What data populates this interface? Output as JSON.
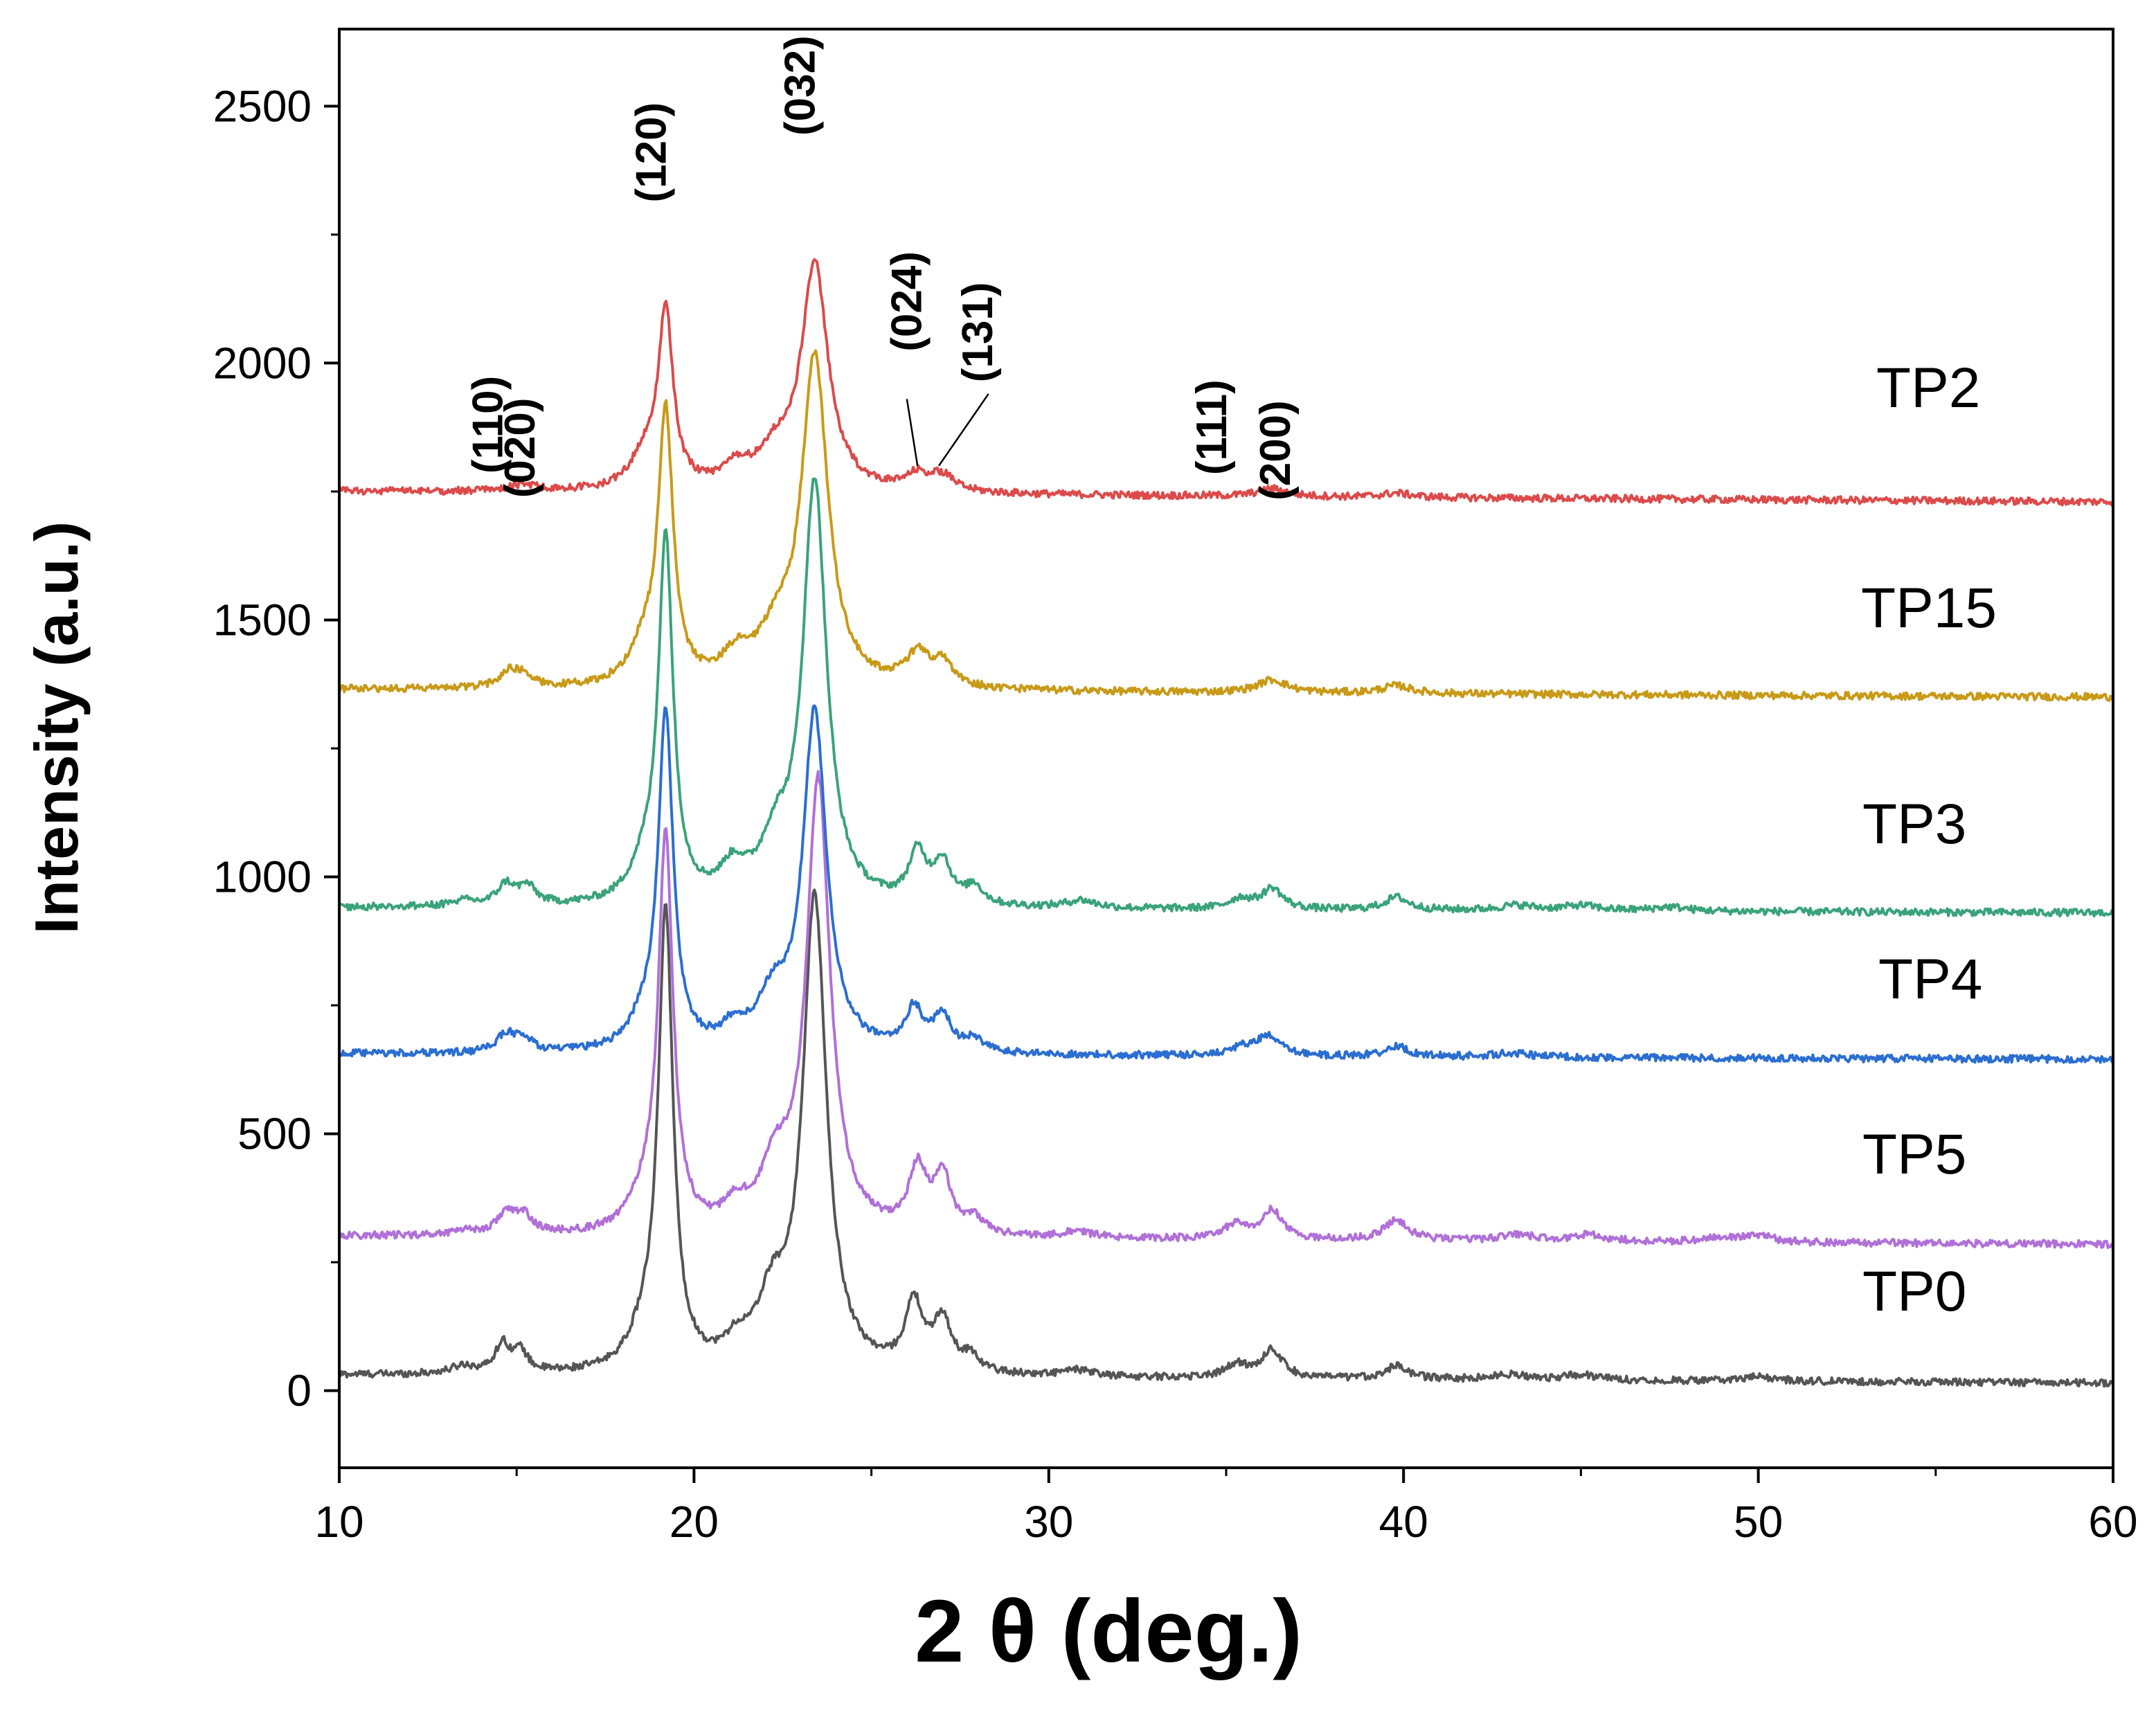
{
  "chart_data": {
    "type": "line",
    "title": "",
    "xlabel": "2 θ (deg.)",
    "ylabel": "Intensity (a.u.)",
    "xlim": [
      10,
      60
    ],
    "ylim": [
      -150,
      2650
    ],
    "x_ticks": [
      10,
      20,
      30,
      40,
      50,
      60
    ],
    "y_ticks": [
      0,
      500,
      1000,
      1500,
      2000,
      2500
    ],
    "x_tick_labels": [
      "10",
      "20",
      "30",
      "40",
      "50",
      "60"
    ],
    "y_tick_labels": [
      "0",
      "500",
      "1000",
      "1500",
      "2000",
      "2500"
    ],
    "grid": false,
    "legend": "inline labels at right",
    "series": [
      {
        "name": "TP0",
        "label": "TP0",
        "color": "#555555",
        "offset": 0,
        "baseline_start": 30,
        "baseline_end": 15,
        "peaks": [
          [
            13.5,
            15,
            0.4
          ],
          [
            14.6,
            55,
            0.25
          ],
          [
            15.1,
            40,
            0.25
          ],
          [
            18.6,
            60,
            0.5
          ],
          [
            19.2,
            880,
            0.25
          ],
          [
            21.2,
            40,
            0.4
          ],
          [
            22.2,
            120,
            0.5
          ],
          [
            23.4,
            920,
            0.4
          ],
          [
            26.2,
            130,
            0.3
          ],
          [
            27.0,
            100,
            0.3
          ],
          [
            27.8,
            30,
            0.3
          ],
          [
            30.8,
            12,
            0.5
          ],
          [
            35.3,
            25,
            0.4
          ],
          [
            36.3,
            55,
            0.35
          ],
          [
            39.8,
            25,
            0.4
          ],
          [
            43.0,
            10,
            0.6
          ],
          [
            45.0,
            10,
            0.6
          ],
          [
            50.0,
            8,
            0.6
          ]
        ]
      },
      {
        "name": "TP5",
        "label": "TP5",
        "color": "#b070d8",
        "offset": 0,
        "baseline_start": 300,
        "baseline_end": 285,
        "peaks": [
          [
            13.5,
            10,
            0.4
          ],
          [
            14.7,
            40,
            0.3
          ],
          [
            15.2,
            35,
            0.3
          ],
          [
            18.6,
            55,
            0.5
          ],
          [
            19.2,
            760,
            0.25
          ],
          [
            21.2,
            40,
            0.4
          ],
          [
            22.3,
            110,
            0.5
          ],
          [
            23.5,
            880,
            0.4
          ],
          [
            26.3,
            120,
            0.3
          ],
          [
            27.0,
            110,
            0.3
          ],
          [
            27.9,
            30,
            0.3
          ],
          [
            30.8,
            12,
            0.5
          ],
          [
            35.3,
            30,
            0.4
          ],
          [
            36.3,
            55,
            0.35
          ],
          [
            39.8,
            40,
            0.4
          ],
          [
            43.2,
            12,
            0.6
          ],
          [
            45.2,
            12,
            0.6
          ],
          [
            49.0,
            10,
            0.5
          ],
          [
            50.0,
            12,
            0.5
          ]
        ]
      },
      {
        "name": "TP4",
        "label": "TP4",
        "color": "#2b6ed2",
        "offset": 0,
        "baseline_start": 655,
        "baseline_end": 645,
        "peaks": [
          [
            14.7,
            35,
            0.3
          ],
          [
            15.2,
            25,
            0.3
          ],
          [
            18.6,
            50,
            0.5
          ],
          [
            19.2,
            650,
            0.25
          ],
          [
            21.1,
            35,
            0.4
          ],
          [
            22.2,
            90,
            0.5
          ],
          [
            23.4,
            660,
            0.4
          ],
          [
            26.2,
            80,
            0.3
          ],
          [
            27.0,
            70,
            0.3
          ],
          [
            27.9,
            25,
            0.3
          ],
          [
            35.5,
            15,
            0.5
          ],
          [
            36.2,
            35,
            0.4
          ],
          [
            39.8,
            20,
            0.4
          ],
          [
            43.0,
            8,
            0.6
          ]
        ]
      },
      {
        "name": "TP3",
        "label": "TP3",
        "color": "#3aa37a",
        "offset": 0,
        "baseline_start": 940,
        "baseline_end": 930,
        "peaks": [
          [
            13.5,
            10,
            0.4
          ],
          [
            14.7,
            40,
            0.3
          ],
          [
            15.3,
            35,
            0.3
          ],
          [
            18.6,
            60,
            0.5
          ],
          [
            19.2,
            700,
            0.25
          ],
          [
            21.1,
            60,
            0.45
          ],
          [
            22.3,
            100,
            0.5
          ],
          [
            23.4,
            820,
            0.4
          ],
          [
            26.3,
            95,
            0.3
          ],
          [
            27.0,
            80,
            0.3
          ],
          [
            27.9,
            35,
            0.3
          ],
          [
            30.9,
            15,
            0.5
          ],
          [
            35.4,
            20,
            0.4
          ],
          [
            36.3,
            40,
            0.35
          ],
          [
            39.8,
            25,
            0.4
          ],
          [
            43.2,
            10,
            0.6
          ],
          [
            45.0,
            10,
            0.6
          ],
          [
            47.5,
            8,
            0.6
          ]
        ]
      },
      {
        "name": "TP15",
        "label": "TP15",
        "color": "#c89a18",
        "offset": 0,
        "baseline_start": 1365,
        "baseline_end": 1350,
        "peaks": [
          [
            14.8,
            30,
            0.35
          ],
          [
            15.2,
            20,
            0.3
          ],
          [
            18.6,
            70,
            0.5
          ],
          [
            19.2,
            520,
            0.25
          ],
          [
            21.2,
            50,
            0.5
          ],
          [
            22.3,
            80,
            0.55
          ],
          [
            23.4,
            640,
            0.45
          ],
          [
            26.3,
            60,
            0.4
          ],
          [
            27.0,
            45,
            0.35
          ],
          [
            36.3,
            25,
            0.5
          ],
          [
            39.8,
            15,
            0.5
          ]
        ]
      },
      {
        "name": "TP2",
        "label": "TP2",
        "color": "#dc4a4a",
        "offset": 0,
        "baseline_start": 1750,
        "baseline_end": 1730,
        "peaks": [
          [
            15.2,
            12,
            0.5
          ],
          [
            18.6,
            60,
            0.5
          ],
          [
            19.2,
            340,
            0.25
          ],
          [
            21.2,
            40,
            0.5
          ],
          [
            22.3,
            60,
            0.55
          ],
          [
            23.4,
            440,
            0.45
          ],
          [
            26.3,
            30,
            0.4
          ],
          [
            27.0,
            30,
            0.4
          ],
          [
            36.3,
            15,
            0.5
          ],
          [
            39.8,
            8,
            0.5
          ]
        ]
      }
    ],
    "series_labels": [
      "TP2",
      "TP15",
      "TP3",
      "TP4",
      "TP5",
      "TP0"
    ],
    "annotations": [
      {
        "text": "(110)",
        "x": 14.6,
        "y": 1880
      },
      {
        "text": "(020)",
        "x": 15.5,
        "y": 1835
      },
      {
        "text": "(120)",
        "x": 19.2,
        "y": 2410
      },
      {
        "text": "(032)",
        "x": 23.4,
        "y": 2540
      },
      {
        "text": "(024)",
        "x": 26.4,
        "y": 2120
      },
      {
        "text": "(131)",
        "x": 28.4,
        "y": 2060
      },
      {
        "text": "(111)",
        "x": 35.0,
        "y": 1875
      },
      {
        "text": "(200)",
        "x": 36.8,
        "y": 1830
      }
    ],
    "leader_lines": [
      {
        "from": [
          26.0,
          1930
        ],
        "to": [
          26.3,
          1800
        ]
      },
      {
        "from": [
          28.3,
          1940
        ],
        "to": [
          26.9,
          1800
        ]
      }
    ]
  }
}
